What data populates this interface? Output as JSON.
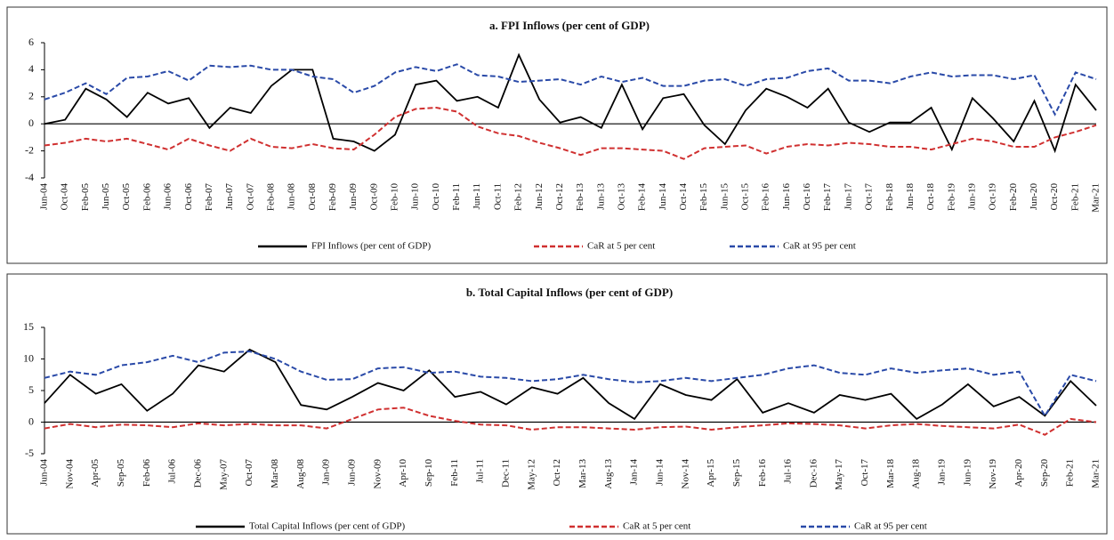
{
  "chart_data": [
    {
      "type": "line",
      "title": "a. FPI Inflows (per cent of GDP)",
      "categories": [
        "Jun-04",
        "Oct-04",
        "Feb-05",
        "Jun-05",
        "Oct-05",
        "Feb-06",
        "Jun-06",
        "Oct-06",
        "Feb-07",
        "Jun-07",
        "Oct-07",
        "Feb-08",
        "Jun-08",
        "Oct-08",
        "Feb-09",
        "Jun-09",
        "Oct-09",
        "Feb-10",
        "Jun-10",
        "Oct-10",
        "Feb-11",
        "Jun-11",
        "Oct-11",
        "Feb-12",
        "Jun-12",
        "Oct-12",
        "Feb-13",
        "Jun-13",
        "Oct-13",
        "Feb-14",
        "Jun-14",
        "Oct-14",
        "Feb-15",
        "Jun-15",
        "Oct-15",
        "Feb-16",
        "Jun-16",
        "Oct-16",
        "Feb-17",
        "Jun-17",
        "Oct-17",
        "Feb-18",
        "Jun-18",
        "Oct-18",
        "Feb-19",
        "Jun-19",
        "Oct-19",
        "Feb-20",
        "Jun-20",
        "Oct-20",
        "Feb-21",
        "Mar-21"
      ],
      "series": [
        {
          "name": "FPI Inflows (per cent of GDP)",
          "color": "#000000",
          "dash": false,
          "values": [
            0,
            0.3,
            2.6,
            1.8,
            0.5,
            2.3,
            1.5,
            1.9,
            -0.3,
            1.2,
            0.8,
            2.8,
            4.0,
            4.0,
            -1.1,
            -1.3,
            -2.0,
            -0.8,
            2.9,
            3.2,
            1.7,
            2.0,
            1.2,
            5.1,
            1.8,
            0.1,
            0.5,
            -0.3,
            2.9,
            -0.4,
            1.9,
            2.2,
            -0.1,
            -1.5,
            1.0,
            2.6,
            2.0,
            1.2,
            2.6,
            0.1,
            -0.6,
            0.1,
            0.1,
            1.2,
            -1.9,
            1.9,
            0.4,
            -1.3,
            1.7,
            -2.0,
            2.9,
            1.0
          ]
        },
        {
          "name": "CaR at 5 per cent",
          "color": "#d03030",
          "dash": true,
          "values": [
            -1.6,
            -1.4,
            -1.1,
            -1.3,
            -1.1,
            -1.5,
            -1.9,
            -1.1,
            -1.6,
            -2.0,
            -1.1,
            -1.7,
            -1.8,
            -1.5,
            -1.8,
            -1.9,
            -0.8,
            0.5,
            1.1,
            1.2,
            0.9,
            -0.2,
            -0.7,
            -0.9,
            -1.4,
            -1.8,
            -2.3,
            -1.8,
            -1.8,
            -1.9,
            -2.0,
            -2.6,
            -1.8,
            -1.7,
            -1.6,
            -2.2,
            -1.7,
            -1.5,
            -1.6,
            -1.4,
            -1.5,
            -1.7,
            -1.7,
            -1.9,
            -1.5,
            -1.1,
            -1.3,
            -1.7,
            -1.7,
            -1.0,
            -0.6,
            -0.1
          ]
        },
        {
          "name": "CaR at 95 per cent",
          "color": "#2a4aa8",
          "dash": true,
          "values": [
            1.8,
            2.3,
            3.0,
            2.2,
            3.4,
            3.5,
            3.9,
            3.2,
            4.3,
            4.2,
            4.3,
            4.0,
            4.0,
            3.5,
            3.3,
            2.3,
            2.8,
            3.8,
            4.2,
            3.9,
            4.4,
            3.6,
            3.5,
            3.1,
            3.2,
            3.3,
            2.9,
            3.5,
            3.1,
            3.4,
            2.8,
            2.8,
            3.2,
            3.3,
            2.8,
            3.3,
            3.4,
            3.9,
            4.1,
            3.2,
            3.2,
            3.0,
            3.5,
            3.8,
            3.5,
            3.6,
            3.6,
            3.3,
            3.6,
            0.7,
            3.8,
            3.3
          ]
        }
      ],
      "ylim": [
        -4,
        6
      ],
      "yticks": [
        -4,
        -2,
        0,
        2,
        4,
        6
      ]
    },
    {
      "type": "line",
      "title": "b. Total Capital Inflows (per cent of GDP)",
      "categories": [
        "Jun-04",
        "Nov-04",
        "Apr-05",
        "Sep-05",
        "Feb-06",
        "Jul-06",
        "Dec-06",
        "May-07",
        "Oct-07",
        "Mar-08",
        "Aug-08",
        "Jan-09",
        "Jun-09",
        "Nov-09",
        "Apr-10",
        "Sep-10",
        "Feb-11",
        "Jul-11",
        "Dec-11",
        "May-12",
        "Oct-12",
        "Mar-13",
        "Aug-13",
        "Jan-14",
        "Jun-14",
        "Nov-14",
        "Apr-15",
        "Sep-15",
        "Feb-16",
        "Jul-16",
        "Dec-16",
        "May-17",
        "Oct-17",
        "Mar-18",
        "Aug-18",
        "Jan-19",
        "Jun-19",
        "Nov-19",
        "Apr-20",
        "Sep-20",
        "Feb-21",
        "Mar-21"
      ],
      "series": [
        {
          "name": "Total Capital Inflows (per cent of GDP)",
          "color": "#000000",
          "dash": false,
          "values": [
            3,
            7.5,
            4.5,
            6,
            1.8,
            4.5,
            9,
            8,
            11.5,
            9.5,
            2.7,
            2,
            4,
            6.2,
            5,
            8.2,
            4,
            4.8,
            2.8,
            5.5,
            4.5,
            7,
            3,
            0.5,
            6,
            4.3,
            3.5,
            6.8,
            1.5,
            3,
            1.5,
            4.3,
            3.5,
            4.5,
            0.5,
            2.8,
            6,
            2.5,
            4,
            1,
            6.5,
            2.6
          ]
        },
        {
          "name": "CaR at 5 per cent",
          "color": "#d03030",
          "dash": true,
          "values": [
            -1,
            -0.3,
            -0.8,
            -0.4,
            -0.5,
            -0.8,
            -0.2,
            -0.5,
            -0.3,
            -0.5,
            -0.5,
            -1,
            0.5,
            2,
            2.3,
            1,
            0.2,
            -0.4,
            -0.5,
            -1.2,
            -0.8,
            -0.8,
            -1,
            -1.2,
            -0.8,
            -0.7,
            -1.2,
            -0.8,
            -0.5,
            -0.2,
            -0.3,
            -0.5,
            -1,
            -0.5,
            -0.3,
            -0.6,
            -0.8,
            -1,
            -0.4,
            -2,
            0.5,
            0
          ]
        },
        {
          "name": "CaR at 95 per cent",
          "color": "#2a4aa8",
          "dash": true,
          "values": [
            7,
            8,
            7.5,
            9,
            9.5,
            10.5,
            9.5,
            11,
            11.2,
            10,
            8,
            6.7,
            6.8,
            8.5,
            8.7,
            7.8,
            8,
            7.2,
            7,
            6.5,
            6.8,
            7.5,
            6.8,
            6.3,
            6.5,
            7,
            6.5,
            7,
            7.5,
            8.5,
            9,
            7.8,
            7.5,
            8.5,
            7.8,
            8.2,
            8.5,
            7.5,
            8,
            1,
            7.5,
            6.5
          ]
        }
      ],
      "ylim": [
        -5,
        15
      ],
      "yticks": [
        -5,
        0,
        5,
        10,
        15
      ]
    }
  ]
}
